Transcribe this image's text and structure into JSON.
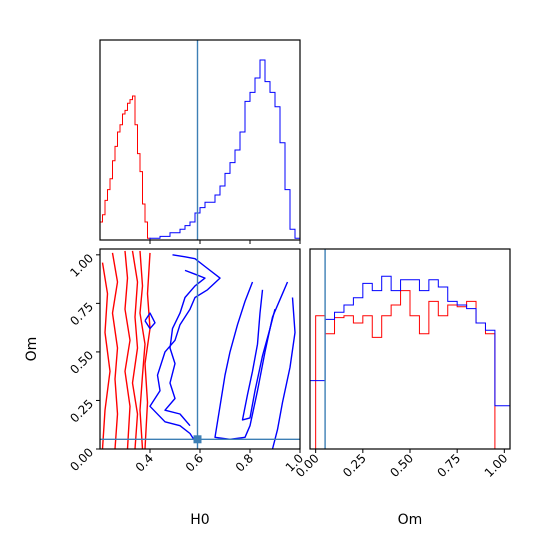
{
  "chart_data": [
    {
      "type": "histogram",
      "panel": "H0 marginal",
      "xlim": [
        0.2,
        1.0
      ],
      "truth": 0.59,
      "series": [
        {
          "name": "",
          "color": "#ff0000",
          "edges": [
            0.2,
            0.21,
            0.22,
            0.23,
            0.24,
            0.25,
            0.26,
            0.27,
            0.28,
            0.29,
            0.3,
            0.31,
            0.32,
            0.33,
            0.34,
            0.35,
            0.36,
            0.37,
            0.38,
            0.39,
            0.4
          ],
          "counts": [
            0.1,
            0.14,
            0.22,
            0.28,
            0.34,
            0.44,
            0.52,
            0.6,
            0.64,
            0.7,
            0.72,
            0.76,
            0.78,
            0.8,
            0.64,
            0.48,
            0.38,
            0.2,
            0.1,
            0.01
          ]
        },
        {
          "name": "",
          "color": "#0000ff",
          "edges": [
            0.4,
            0.42,
            0.44,
            0.46,
            0.48,
            0.5,
            0.52,
            0.54,
            0.56,
            0.58,
            0.6,
            0.62,
            0.64,
            0.66,
            0.68,
            0.7,
            0.72,
            0.74,
            0.76,
            0.78,
            0.8,
            0.82,
            0.84,
            0.86,
            0.88,
            0.9,
            0.92,
            0.94,
            0.96,
            0.98,
            1.0
          ],
          "counts": [
            0.01,
            0.01,
            0.02,
            0.02,
            0.04,
            0.04,
            0.06,
            0.08,
            0.1,
            0.15,
            0.18,
            0.21,
            0.21,
            0.25,
            0.3,
            0.37,
            0.43,
            0.5,
            0.6,
            0.77,
            0.82,
            0.9,
            1.0,
            0.88,
            0.82,
            0.74,
            0.54,
            0.28,
            0.06,
            0.01
          ]
        }
      ]
    },
    {
      "type": "contour",
      "panel": "H0 vs Om",
      "xlabel": "H0",
      "ylabel": "Om",
      "xlim": [
        0.2,
        1.0
      ],
      "ylim": [
        0.0,
        1.03
      ],
      "xticks": [
        "0.4",
        "0.6",
        "0.8",
        "1.0"
      ],
      "yticks": [
        "0.00",
        "0.25",
        "0.50",
        "0.75",
        "1.00"
      ],
      "truth": {
        "H0": 0.59,
        "Om": 0.05
      },
      "series": [
        {
          "name": "",
          "color": "#ff0000",
          "contours": [
            [
              [
                0.21,
                0.96
              ],
              [
                0.23,
                0.8
              ],
              [
                0.22,
                0.6
              ],
              [
                0.24,
                0.4
              ],
              [
                0.22,
                0.2
              ],
              [
                0.21,
                0.0
              ]
            ],
            [
              [
                0.25,
                1.01
              ],
              [
                0.27,
                0.86
              ],
              [
                0.25,
                0.7
              ],
              [
                0.27,
                0.52
              ],
              [
                0.26,
                0.36
              ],
              [
                0.27,
                0.18
              ],
              [
                0.26,
                0.0
              ]
            ],
            [
              [
                0.3,
                1.02
              ],
              [
                0.31,
                0.88
              ],
              [
                0.3,
                0.72
              ],
              [
                0.32,
                0.56
              ],
              [
                0.3,
                0.4
              ],
              [
                0.32,
                0.22
              ],
              [
                0.31,
                0.0
              ]
            ],
            [
              [
                0.33,
                1.02
              ],
              [
                0.35,
                0.86
              ],
              [
                0.34,
                0.68
              ],
              [
                0.35,
                0.52
              ],
              [
                0.33,
                0.34
              ],
              [
                0.35,
                0.18
              ],
              [
                0.34,
                0.0
              ]
            ],
            [
              [
                0.36,
                1.02
              ],
              [
                0.37,
                0.84
              ],
              [
                0.36,
                0.7
              ],
              [
                0.38,
                0.54
              ],
              [
                0.37,
                0.38
              ],
              [
                0.36,
                0.2
              ],
              [
                0.37,
                0.0
              ]
            ],
            [
              [
                0.4,
                1.01
              ],
              [
                0.39,
                0.8
              ],
              [
                0.4,
                0.62
              ],
              [
                0.38,
                0.44
              ],
              [
                0.39,
                0.24
              ],
              [
                0.38,
                0.0
              ]
            ]
          ]
        },
        {
          "name": "",
          "color": "#0000ff",
          "contours": [
            [
              [
                0.49,
                1.0
              ],
              [
                0.54,
                0.99
              ],
              [
                0.58,
                0.98
              ],
              [
                0.62,
                0.94
              ],
              [
                0.68,
                0.88
              ],
              [
                0.63,
                0.82
              ],
              [
                0.58,
                0.78
              ],
              [
                0.56,
                0.72
              ],
              [
                0.52,
                0.64
              ],
              [
                0.5,
                0.56
              ],
              [
                0.46,
                0.5
              ],
              [
                0.43,
                0.38
              ],
              [
                0.44,
                0.3
              ],
              [
                0.4,
                0.22
              ],
              [
                0.46,
                0.14
              ],
              [
                0.52,
                0.12
              ],
              [
                0.56,
                0.08
              ],
              [
                0.58,
                0.04
              ]
            ],
            [
              [
                0.54,
                0.92
              ],
              [
                0.58,
                0.9
              ],
              [
                0.62,
                0.88
              ],
              [
                0.58,
                0.84
              ],
              [
                0.54,
                0.78
              ],
              [
                0.52,
                0.7
              ],
              [
                0.49,
                0.62
              ],
              [
                0.48,
                0.52
              ],
              [
                0.5,
                0.44
              ],
              [
                0.48,
                0.34
              ],
              [
                0.5,
                0.26
              ],
              [
                0.46,
                0.2
              ],
              [
                0.52,
                0.18
              ],
              [
                0.56,
                0.12
              ]
            ],
            [
              [
                0.81,
                0.86
              ],
              [
                0.78,
                0.76
              ],
              [
                0.75,
                0.64
              ],
              [
                0.72,
                0.5
              ],
              [
                0.7,
                0.38
              ],
              [
                0.68,
                0.22
              ],
              [
                0.66,
                0.06
              ],
              [
                0.72,
                0.05
              ],
              [
                0.78,
                0.06
              ],
              [
                0.8,
                0.12
              ],
              [
                0.83,
                0.3
              ],
              [
                0.86,
                0.5
              ],
              [
                0.89,
                0.68
              ],
              [
                0.93,
                0.8
              ],
              [
                0.95,
                0.86
              ]
            ],
            [
              [
                0.85,
                0.82
              ],
              [
                0.84,
                0.7
              ],
              [
                0.83,
                0.54
              ],
              [
                0.81,
                0.4
              ],
              [
                0.79,
                0.28
              ],
              [
                0.77,
                0.15
              ],
              [
                0.8,
                0.16
              ],
              [
                0.82,
                0.3
              ],
              [
                0.85,
                0.48
              ],
              [
                0.88,
                0.62
              ],
              [
                0.9,
                0.72
              ]
            ],
            [
              [
                0.97,
                0.78
              ],
              [
                0.98,
                0.6
              ],
              [
                0.96,
                0.42
              ],
              [
                0.93,
                0.24
              ],
              [
                0.91,
                0.1
              ],
              [
                0.89,
                0.0
              ]
            ],
            [
              [
                0.38,
                0.66
              ],
              [
                0.4,
                0.62
              ],
              [
                0.42,
                0.65
              ],
              [
                0.4,
                0.7
              ],
              [
                0.38,
                0.66
              ]
            ]
          ]
        }
      ]
    },
    {
      "type": "histogram",
      "panel": "Om marginal",
      "xlabel": "Om",
      "xlim": [
        -0.03,
        1.03
      ],
      "xticks": [
        "0.00",
        "0.25",
        "0.50",
        "0.75",
        "1.00"
      ],
      "truth": 0.05,
      "series": [
        {
          "name": "",
          "color": "#ff0000",
          "edges": [
            0.0,
            0.05,
            0.1,
            0.15,
            0.2,
            0.25,
            0.3,
            0.35,
            0.4,
            0.45,
            0.5,
            0.55,
            0.6,
            0.65,
            0.7,
            0.75,
            0.8,
            0.85,
            0.9,
            0.95,
            1.0
          ],
          "counts": [
            0.74,
            0.64,
            0.73,
            0.74,
            0.7,
            0.74,
            0.62,
            0.74,
            0.8,
            0.88,
            0.74,
            0.64,
            0.82,
            0.74,
            0.8,
            0.79,
            0.82,
            0.7,
            0.64,
            0.0
          ]
        },
        {
          "name": "",
          "color": "#0000ff",
          "edges": [
            -0.03,
            0.0,
            0.05,
            0.1,
            0.15,
            0.2,
            0.25,
            0.3,
            0.35,
            0.4,
            0.45,
            0.5,
            0.55,
            0.6,
            0.65,
            0.7,
            0.75,
            0.8,
            0.85,
            0.9,
            0.95,
            1.0,
            1.03
          ],
          "counts": [
            0.38,
            0.38,
            0.72,
            0.76,
            0.8,
            0.84,
            0.92,
            0.88,
            0.96,
            0.88,
            0.94,
            0.94,
            0.88,
            0.94,
            0.9,
            0.82,
            0.8,
            0.78,
            0.7,
            0.66,
            0.24,
            0.24
          ]
        }
      ]
    }
  ]
}
